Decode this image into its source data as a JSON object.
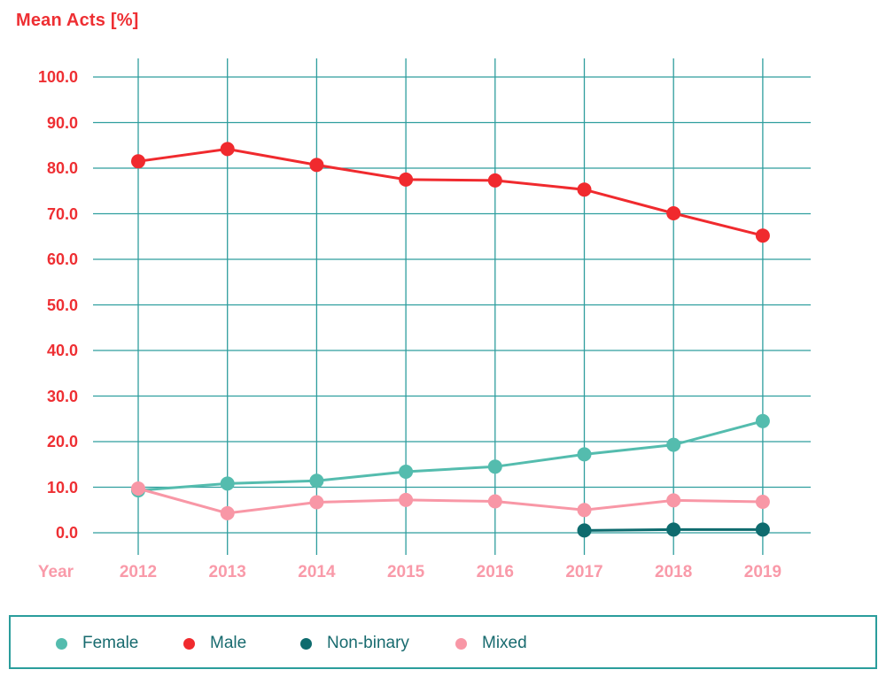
{
  "chart_data": {
    "type": "line",
    "title": "Mean Acts [%]",
    "xlabel": "Year",
    "ylabel": "Mean Acts [%]",
    "categories": [
      "2012",
      "2013",
      "2014",
      "2015",
      "2016",
      "2017",
      "2018",
      "2019"
    ],
    "y_ticks": [
      "100.0",
      "90.0",
      "80.0",
      "70.0",
      "60.0",
      "50.0",
      "40.0",
      "30.0",
      "20.0",
      "10.0",
      "0.0"
    ],
    "ylim": [
      0,
      100
    ],
    "grid": true,
    "legend_position": "bottom",
    "series": [
      {
        "name": "Female",
        "color": "#54bcae",
        "values": [
          9.3,
          10.8,
          11.4,
          13.4,
          14.5,
          17.2,
          19.3,
          24.5
        ]
      },
      {
        "name": "Male",
        "color": "#f02a2e",
        "values": [
          81.5,
          84.2,
          80.7,
          77.5,
          77.3,
          75.3,
          70.1,
          65.2
        ]
      },
      {
        "name": "Non-binary",
        "color": "#0e6b6e",
        "values": [
          null,
          null,
          null,
          null,
          null,
          0.5,
          0.7,
          0.7
        ]
      },
      {
        "name": "Mixed",
        "color": "#f897a6",
        "values": [
          9.7,
          4.3,
          6.7,
          7.2,
          6.9,
          5.0,
          7.1,
          6.8
        ]
      }
    ]
  },
  "colors": {
    "title_red": "#ee2f33",
    "y_label_red": "#ee2f33",
    "x_label_pink": "#f99aa9",
    "grid_teal": "#2f9e9e",
    "legend_border_teal": "#2a9d9c",
    "legend_text_teal": "#186b6f",
    "background": "#ffffff"
  }
}
